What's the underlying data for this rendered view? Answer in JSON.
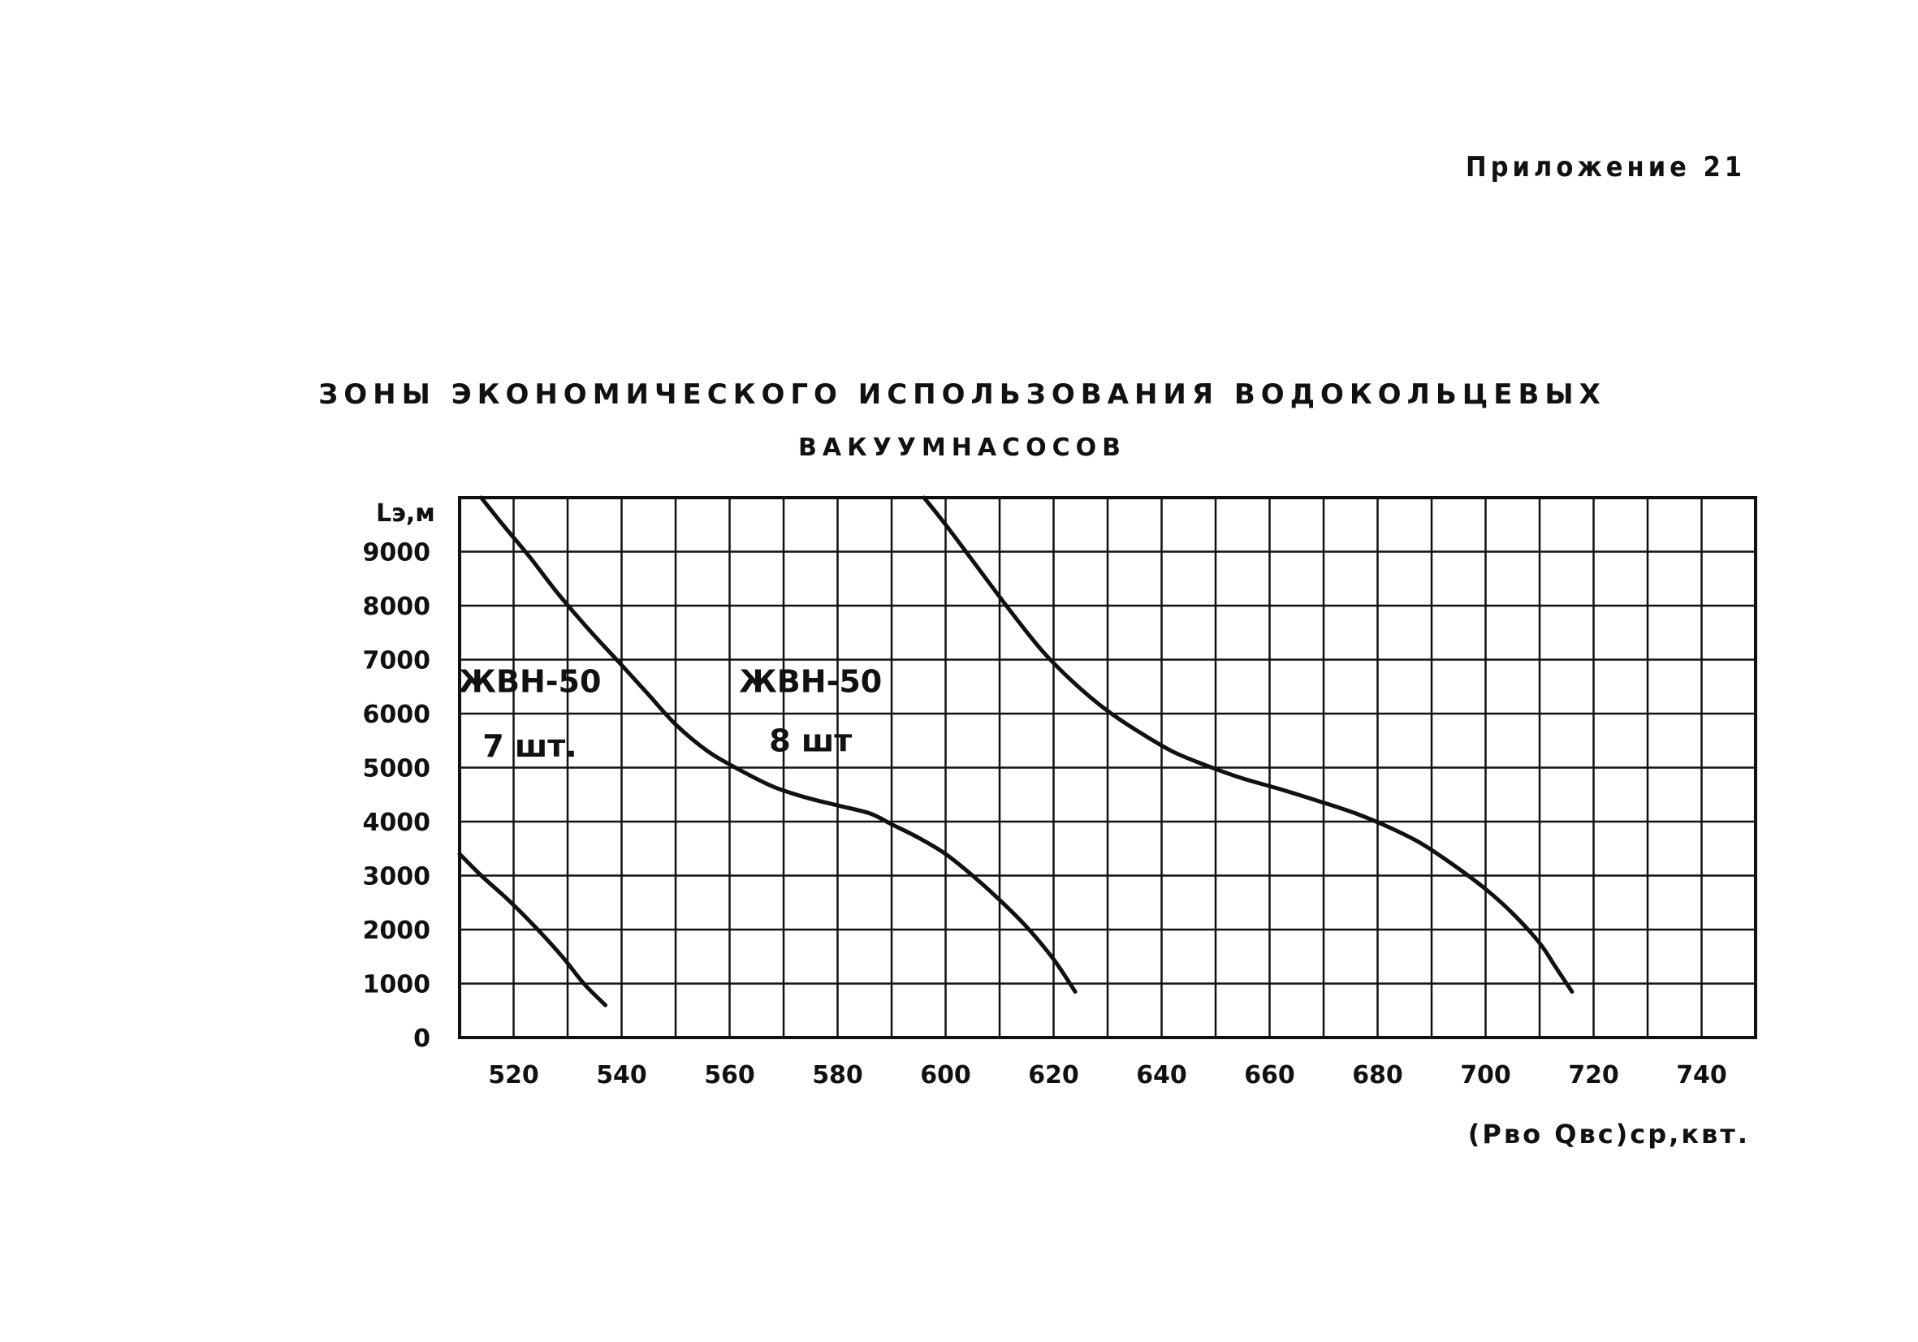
{
  "appendix": "Приложение 21",
  "title_line1": "Зоны экономического использования водокольцевых",
  "title_line2": "вакуумнасосов",
  "chart_data": {
    "type": "line",
    "xlabel": "(Рво Qвс)ср,квт.",
    "ylabel": "Lэ,м",
    "xlim": [
      510,
      750
    ],
    "ylim": [
      0,
      10000
    ],
    "x_ticks": [
      "520",
      "540",
      "560",
      "580",
      "600",
      "620",
      "640",
      "660",
      "680",
      "700",
      "720",
      "740"
    ],
    "y_ticks": [
      "0",
      "1000",
      "2000",
      "3000",
      "4000",
      "5000",
      "6000",
      "7000",
      "8000",
      "9000"
    ],
    "grid": true,
    "series": [
      {
        "x": [
          510,
          514,
          519,
          524,
          529,
          533,
          537
        ],
        "y": [
          3400,
          3000,
          2550,
          2050,
          1500,
          1000,
          600
        ]
      },
      {
        "x": [
          514,
          518,
          523,
          528,
          534,
          540,
          545,
          550,
          556,
          562,
          568,
          574,
          580,
          586,
          590,
          595,
          600,
          605,
          610,
          615,
          620,
          624
        ],
        "y": [
          10000,
          9500,
          8900,
          8250,
          7550,
          6900,
          6350,
          5800,
          5300,
          4950,
          4650,
          4450,
          4300,
          4150,
          3950,
          3700,
          3400,
          3000,
          2550,
          2050,
          1450,
          850
        ]
      },
      {
        "x": [
          596,
          600,
          606,
          612,
          618,
          624,
          630,
          636,
          642,
          648,
          655,
          662,
          670,
          676,
          682,
          688,
          694,
          700,
          705,
          710,
          713,
          716
        ],
        "y": [
          10000,
          9500,
          8700,
          7900,
          7150,
          6550,
          6050,
          5650,
          5300,
          5050,
          4800,
          4600,
          4350,
          4150,
          3900,
          3600,
          3200,
          2750,
          2300,
          1750,
          1300,
          850
        ]
      }
    ],
    "annotations": [
      {
        "x": 523,
        "y": 6400,
        "text": "ЖВН-50"
      },
      {
        "x": 523,
        "y": 5200,
        "text": "7 шт."
      },
      {
        "x": 575,
        "y": 6400,
        "text": "ЖВН-50"
      },
      {
        "x": 575,
        "y": 5300,
        "text": "8 шт"
      }
    ]
  }
}
